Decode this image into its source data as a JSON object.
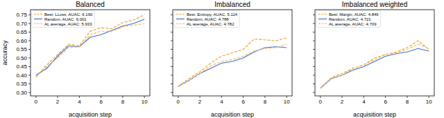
{
  "chart_data": [
    {
      "type": "line",
      "title": "Balanced",
      "x_label": "acquisition step",
      "y_label": "accuracy",
      "x": [
        0,
        1,
        2,
        3,
        4,
        5,
        6,
        7,
        8,
        9,
        10
      ],
      "xlim": [
        -0.5,
        10.5
      ],
      "xticks": [
        0,
        2,
        4,
        6,
        8,
        10
      ],
      "ylim": [
        0.28,
        0.78
      ],
      "yticks": [
        {
          "value": 0.3,
          "label": "0.30"
        },
        {
          "value": 0.35,
          "label": "0.35"
        },
        {
          "value": 0.4,
          "label": "0.40"
        },
        {
          "value": 0.45,
          "label": "0.45"
        },
        {
          "value": 0.5,
          "label": "0.50"
        },
        {
          "value": 0.55,
          "label": "0.55"
        },
        {
          "value": 0.6,
          "label": "0.60"
        },
        {
          "value": 0.65,
          "label": "0.65"
        },
        {
          "value": 0.7,
          "label": "0.70"
        },
        {
          "value": 0.75,
          "label": "0.75"
        }
      ],
      "legend": "upper left",
      "grid": false,
      "series": [
        {
          "name": "Best: LLoss, AUAC: 6.190",
          "color": "#f0a030",
          "line_style": "dashed",
          "values": [
            0.39,
            0.46,
            0.52,
            0.58,
            0.57,
            0.655,
            0.675,
            0.67,
            0.705,
            0.72,
            0.75
          ]
        },
        {
          "name": "Random, AUAC: 6.001",
          "color": "#3a6fd8",
          "line_style": "solid",
          "values": [
            0.4,
            0.44,
            0.51,
            0.57,
            0.565,
            0.62,
            0.635,
            0.66,
            0.685,
            0.7,
            0.725
          ]
        },
        {
          "name": "AL average, AUAC: 5.933",
          "color": "#f5b95a",
          "line_style": "dashed",
          "values": [
            0.39,
            0.45,
            0.5,
            0.56,
            0.565,
            0.635,
            0.655,
            0.655,
            0.68,
            0.69,
            0.7
          ]
        }
      ]
    },
    {
      "type": "line",
      "title": "Imbalanced",
      "x_label": "acquisition step",
      "x": [
        0,
        1,
        2,
        3,
        4,
        5,
        6,
        7,
        8,
        9,
        10
      ],
      "xlim": [
        -0.5,
        10.5
      ],
      "xticks": [
        0,
        2,
        4,
        6,
        8,
        10
      ],
      "ylim": [
        0.28,
        0.78
      ],
      "yticks": [
        0.3,
        0.35,
        0.4,
        0.45,
        0.5,
        0.55,
        0.6,
        0.65,
        0.7,
        0.75
      ],
      "tick_labels": "x",
      "legend": "upper left",
      "grid": false,
      "series": [
        {
          "name": "Best: Entropy, AUAC: 5.114",
          "color": "#f0a030",
          "line_style": "dashed",
          "values": [
            0.335,
            0.38,
            0.42,
            0.47,
            0.51,
            0.53,
            0.55,
            0.61,
            0.605,
            0.6,
            0.615
          ]
        },
        {
          "name": "Random, AUAC: 4.788",
          "color": "#3a6fd8",
          "line_style": "solid",
          "values": [
            0.335,
            0.37,
            0.41,
            0.44,
            0.47,
            0.48,
            0.5,
            0.535,
            0.56,
            0.565,
            0.56
          ]
        },
        {
          "name": "AL average, AUAC: 4.782",
          "color": "#f5b95a",
          "line_style": "dashed",
          "values": [
            0.335,
            0.37,
            0.41,
            0.455,
            0.48,
            0.49,
            0.51,
            0.54,
            0.555,
            0.56,
            0.58
          ]
        }
      ]
    },
    {
      "type": "line",
      "title": "Imbalanced weighted",
      "x_label": "acquisition step",
      "x": [
        0,
        1,
        2,
        3,
        4,
        5,
        6,
        7,
        8,
        9,
        10
      ],
      "xlim": [
        -0.5,
        10.5
      ],
      "xticks": [
        0,
        2,
        4,
        6,
        8,
        10
      ],
      "ylim": [
        0.28,
        0.78
      ],
      "yticks": [
        0.3,
        0.35,
        0.4,
        0.45,
        0.5,
        0.55,
        0.6,
        0.65,
        0.7,
        0.75
      ],
      "tick_labels": "x",
      "legend": "upper left",
      "grid": false,
      "series": [
        {
          "name": "Best: Margin, AUAC: 4.846",
          "color": "#f0a030",
          "line_style": "dashed",
          "values": [
            0.325,
            0.385,
            0.41,
            0.44,
            0.46,
            0.5,
            0.52,
            0.535,
            0.56,
            0.6,
            0.55
          ]
        },
        {
          "name": "Random, AUAC: 4.721",
          "color": "#3a6fd8",
          "line_style": "solid",
          "values": [
            0.325,
            0.38,
            0.4,
            0.43,
            0.45,
            0.48,
            0.51,
            0.525,
            0.535,
            0.555,
            0.54
          ]
        },
        {
          "name": "AL average, AUAC: 4.709",
          "color": "#f5b95a",
          "line_style": "dashed",
          "values": [
            0.325,
            0.38,
            0.4,
            0.44,
            0.46,
            0.49,
            0.52,
            0.53,
            0.55,
            0.58,
            0.555
          ]
        }
      ]
    }
  ]
}
